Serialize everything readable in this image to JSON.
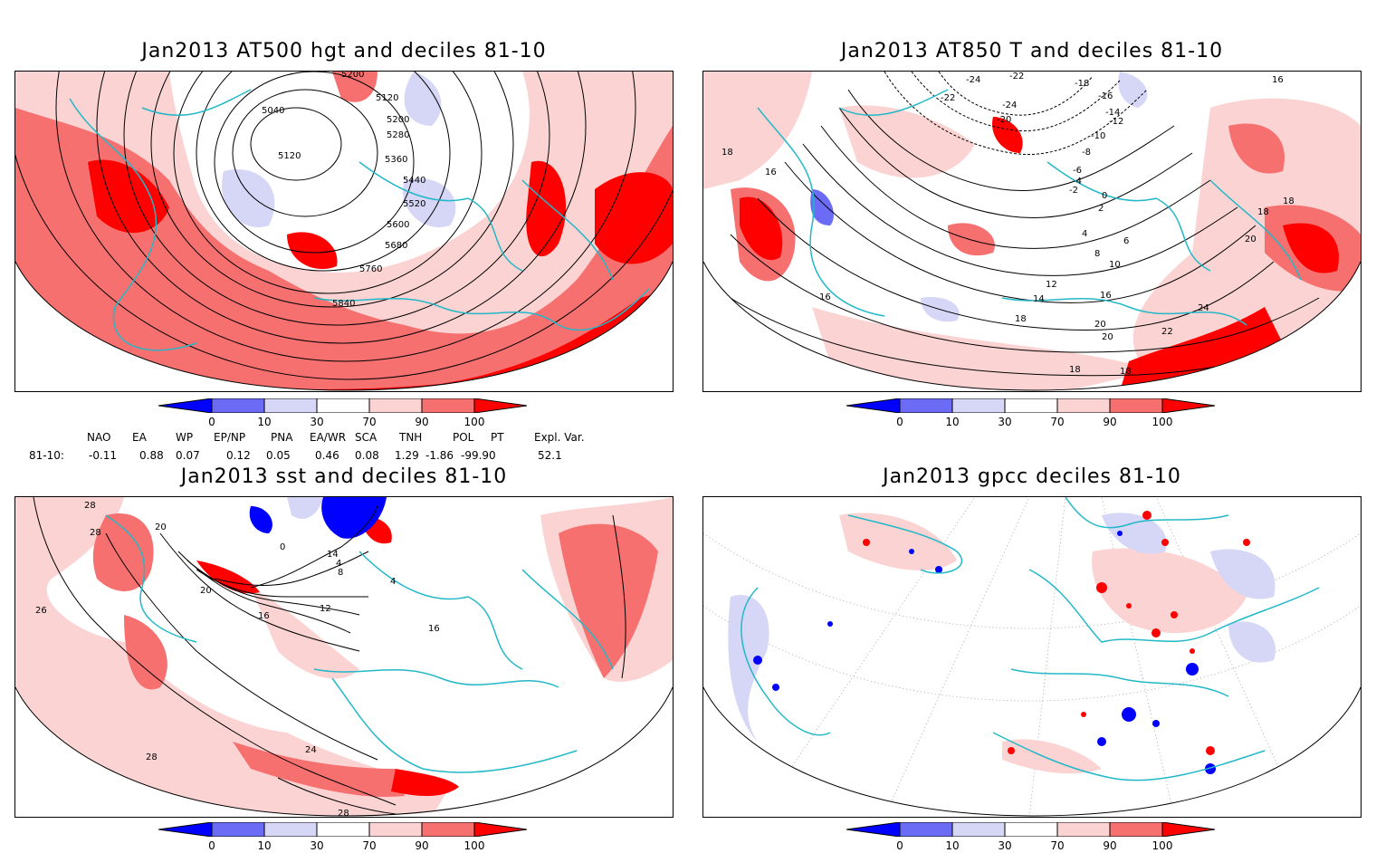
{
  "panels": {
    "p1": {
      "title": "Jan2013 AT500 hgt and deciles 81-10",
      "contour_labels": [
        "5200",
        "5040",
        "5120",
        "5200",
        "5280",
        "5120",
        "5360",
        "5440",
        "5520",
        "5600",
        "5680",
        "5760",
        "5840"
      ]
    },
    "p2": {
      "title": "Jan2013 AT850 T and deciles 81-10",
      "contour_labels": [
        "-24",
        "-22",
        "-22",
        "-18",
        "-16",
        "-24",
        "-20",
        "-14",
        "-12",
        "-10",
        "-8",
        "-6",
        "-4",
        "-2",
        "0",
        "2",
        "4",
        "6",
        "8",
        "10",
        "12",
        "14",
        "16",
        "18",
        "18",
        "16",
        "16",
        "16",
        "18",
        "20",
        "22",
        "24",
        "20",
        "20",
        "18",
        "18",
        "18"
      ]
    },
    "p3": {
      "title": "Jan2013 sst and deciles 81-10",
      "contour_labels": [
        "28",
        "28",
        "20",
        "0",
        "4",
        "8",
        "12",
        "16",
        "20",
        "26",
        "28",
        "24",
        "28",
        "16",
        "4",
        "14"
      ]
    },
    "p4": {
      "title": "Jan2013 gpcc deciles 81-10"
    }
  },
  "colorbar": {
    "ticks": [
      "0",
      "10",
      "30",
      "70",
      "90",
      "100"
    ],
    "colors": [
      "#0000ff",
      "#6b6bf5",
      "#d6d6f7",
      "#ffffff",
      "#fbd3d3",
      "#f77070",
      "#ff0000"
    ]
  },
  "indices": {
    "headers": [
      "NAO",
      "EA",
      "WP",
      "EP/NP",
      "PNA",
      "EA/WR",
      "SCA",
      "TNH",
      "POL",
      "PT",
      "Expl. Var."
    ],
    "row_label": "81-10:",
    "values": [
      "-0.11",
      "0.88",
      "0.07",
      "0.12",
      "0.05",
      "0.46",
      "0.08",
      "1.29",
      "-1.86",
      "-99.90",
      "52.1"
    ]
  },
  "colors": {
    "coast": "#22b8c8",
    "contour": "#000000",
    "grid": "#999999"
  }
}
